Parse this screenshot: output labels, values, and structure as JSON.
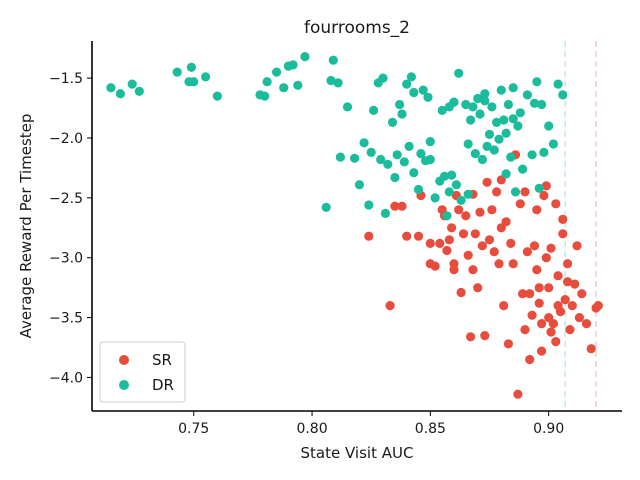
{
  "chart_data": {
    "type": "scatter",
    "title": "fourrooms_2",
    "xlabel": "State Visit AUC",
    "ylabel": "Average Reward Per Timestep",
    "xlim": [
      0.707,
      0.931
    ],
    "ylim": [
      -4.28,
      -1.19
    ],
    "xticks": [
      0.75,
      0.8,
      0.85,
      0.9
    ],
    "xtick_labels": [
      "0.75",
      "0.80",
      "0.85",
      "0.90"
    ],
    "yticks": [
      -1.5,
      -2.0,
      -2.5,
      -3.0,
      -3.5,
      -4.0
    ],
    "ytick_labels": [
      "−1.5",
      "−2.0",
      "−2.5",
      "−3.0",
      "−3.5",
      "−4.0"
    ],
    "grid": false,
    "legend_position": "bottom-left",
    "reference_lines": [
      {
        "x": 0.907,
        "color": "#1abc9c"
      },
      {
        "x": 0.92,
        "color": "#e74c3c"
      }
    ],
    "series": [
      {
        "name": "SR",
        "color": "#e74c3c",
        "points": [
          [
            0.824,
            -2.82
          ],
          [
            0.833,
            -3.4
          ],
          [
            0.835,
            -2.57
          ],
          [
            0.838,
            -2.57
          ],
          [
            0.84,
            -2.82
          ],
          [
            0.845,
            -2.82
          ],
          [
            0.846,
            -2.48
          ],
          [
            0.85,
            -2.88
          ],
          [
            0.852,
            -3.07
          ],
          [
            0.854,
            -2.88
          ],
          [
            0.855,
            -2.6
          ],
          [
            0.856,
            -2.65
          ],
          [
            0.857,
            -2.94
          ],
          [
            0.858,
            -2.85
          ],
          [
            0.859,
            -2.75
          ],
          [
            0.86,
            -3.1
          ],
          [
            0.861,
            -2.48
          ],
          [
            0.862,
            -2.6
          ],
          [
            0.863,
            -3.29
          ],
          [
            0.864,
            -2.8
          ],
          [
            0.865,
            -2.65
          ],
          [
            0.866,
            -2.98
          ],
          [
            0.867,
            -3.66
          ],
          [
            0.868,
            -2.47
          ],
          [
            0.869,
            -2.8
          ],
          [
            0.87,
            -3.25
          ],
          [
            0.871,
            -2.62
          ],
          [
            0.872,
            -2.9
          ],
          [
            0.873,
            -3.65
          ],
          [
            0.874,
            -2.37
          ],
          [
            0.875,
            -2.85
          ],
          [
            0.876,
            -2.6
          ],
          [
            0.877,
            -2.95
          ],
          [
            0.878,
            -2.45
          ],
          [
            0.879,
            -3.05
          ],
          [
            0.88,
            -2.75
          ],
          [
            0.881,
            -3.4
          ],
          [
            0.882,
            -2.7
          ],
          [
            0.883,
            -3.72
          ],
          [
            0.884,
            -2.88
          ],
          [
            0.885,
            -3.05
          ],
          [
            0.886,
            -2.14
          ],
          [
            0.887,
            -4.14
          ],
          [
            0.888,
            -2.55
          ],
          [
            0.889,
            -3.3
          ],
          [
            0.89,
            -3.6
          ],
          [
            0.891,
            -2.95
          ],
          [
            0.892,
            -3.3
          ],
          [
            0.893,
            -3.48
          ],
          [
            0.894,
            -2.9
          ],
          [
            0.895,
            -3.1
          ],
          [
            0.896,
            -3.38
          ],
          [
            0.897,
            -3.55
          ],
          [
            0.898,
            -2.48
          ],
          [
            0.899,
            -3.0
          ],
          [
            0.9,
            -3.25
          ],
          [
            0.901,
            -2.92
          ],
          [
            0.902,
            -3.55
          ],
          [
            0.903,
            -3.7
          ],
          [
            0.904,
            -3.15
          ],
          [
            0.905,
            -3.45
          ],
          [
            0.906,
            -2.8
          ],
          [
            0.907,
            -3.35
          ],
          [
            0.908,
            -3.05
          ],
          [
            0.909,
            -3.6
          ],
          [
            0.91,
            -3.4
          ],
          [
            0.911,
            -3.22
          ],
          [
            0.912,
            -2.9
          ],
          [
            0.913,
            -3.5
          ],
          [
            0.914,
            -3.3
          ],
          [
            0.916,
            -3.55
          ],
          [
            0.918,
            -3.76
          ],
          [
            0.92,
            -3.42
          ],
          [
            0.921,
            -3.4
          ],
          [
            0.88,
            -2.35
          ],
          [
            0.89,
            -2.45
          ],
          [
            0.895,
            -2.6
          ],
          [
            0.903,
            -2.55
          ],
          [
            0.906,
            -2.68
          ],
          [
            0.899,
            -2.4
          ],
          [
            0.868,
            -3.1
          ],
          [
            0.86,
            -3.05
          ],
          [
            0.85,
            -3.05
          ],
          [
            0.892,
            -3.85
          ],
          [
            0.897,
            -3.78
          ],
          [
            0.9,
            -3.5
          ],
          [
            0.904,
            -3.4
          ],
          [
            0.908,
            -3.2
          ],
          [
            0.901,
            -3.62
          ],
          [
            0.896,
            -3.25
          ]
        ]
      },
      {
        "name": "DR",
        "color": "#1abc9c",
        "points": [
          [
            0.715,
            -1.58
          ],
          [
            0.719,
            -1.63
          ],
          [
            0.724,
            -1.55
          ],
          [
            0.727,
            -1.61
          ],
          [
            0.743,
            -1.45
          ],
          [
            0.748,
            -1.53
          ],
          [
            0.749,
            -1.41
          ],
          [
            0.75,
            -1.53
          ],
          [
            0.755,
            -1.49
          ],
          [
            0.76,
            -1.65
          ],
          [
            0.778,
            -1.64
          ],
          [
            0.78,
            -1.65
          ],
          [
            0.781,
            -1.53
          ],
          [
            0.785,
            -1.45
          ],
          [
            0.788,
            -1.58
          ],
          [
            0.79,
            -1.4
          ],
          [
            0.792,
            -1.39
          ],
          [
            0.794,
            -1.56
          ],
          [
            0.797,
            -1.32
          ],
          [
            0.806,
            -2.58
          ],
          [
            0.808,
            -1.52
          ],
          [
            0.809,
            -1.35
          ],
          [
            0.811,
            -1.54
          ],
          [
            0.812,
            -2.16
          ],
          [
            0.815,
            -1.74
          ],
          [
            0.818,
            -2.17
          ],
          [
            0.82,
            -2.39
          ],
          [
            0.822,
            -2.04
          ],
          [
            0.824,
            -2.56
          ],
          [
            0.825,
            -2.12
          ],
          [
            0.826,
            -1.77
          ],
          [
            0.828,
            -1.54
          ],
          [
            0.829,
            -2.18
          ],
          [
            0.83,
            -1.5
          ],
          [
            0.831,
            -2.63
          ],
          [
            0.832,
            -2.22
          ],
          [
            0.834,
            -1.87
          ],
          [
            0.835,
            -2.33
          ],
          [
            0.836,
            -2.14
          ],
          [
            0.837,
            -1.72
          ],
          [
            0.838,
            -1.8
          ],
          [
            0.839,
            -2.2
          ],
          [
            0.84,
            -1.55
          ],
          [
            0.841,
            -2.07
          ],
          [
            0.842,
            -1.49
          ],
          [
            0.843,
            -1.62
          ],
          [
            0.845,
            -2.43
          ],
          [
            0.846,
            -2.13
          ],
          [
            0.847,
            -1.6
          ],
          [
            0.848,
            -2.19
          ],
          [
            0.849,
            -1.66
          ],
          [
            0.85,
            -2.03
          ],
          [
            0.852,
            -2.5
          ],
          [
            0.854,
            -2.36
          ],
          [
            0.855,
            -1.77
          ],
          [
            0.856,
            -2.32
          ],
          [
            0.857,
            -2.65
          ],
          [
            0.858,
            -2.45
          ],
          [
            0.859,
            -2.31
          ],
          [
            0.86,
            -1.7
          ],
          [
            0.861,
            -2.39
          ],
          [
            0.862,
            -1.46
          ],
          [
            0.863,
            -2.52
          ],
          [
            0.865,
            -1.72
          ],
          [
            0.866,
            -2.47
          ],
          [
            0.867,
            -1.85
          ],
          [
            0.868,
            -1.74
          ],
          [
            0.869,
            -2.13
          ],
          [
            0.87,
            -1.67
          ],
          [
            0.871,
            -1.8
          ],
          [
            0.872,
            -2.18
          ],
          [
            0.873,
            -1.63
          ],
          [
            0.874,
            -2.07
          ],
          [
            0.875,
            -1.97
          ],
          [
            0.876,
            -1.74
          ],
          [
            0.877,
            -2.1
          ],
          [
            0.878,
            -1.87
          ],
          [
            0.879,
            -2.01
          ],
          [
            0.88,
            -1.6
          ],
          [
            0.881,
            -1.85
          ],
          [
            0.882,
            -2.3
          ],
          [
            0.883,
            -1.72
          ],
          [
            0.884,
            -2.16
          ],
          [
            0.885,
            -1.84
          ],
          [
            0.886,
            -2.45
          ],
          [
            0.887,
            -1.9
          ],
          [
            0.888,
            -1.79
          ],
          [
            0.889,
            -2.26
          ],
          [
            0.891,
            -1.64
          ],
          [
            0.893,
            -2.14
          ],
          [
            0.894,
            -1.71
          ],
          [
            0.895,
            -1.53
          ],
          [
            0.896,
            -2.42
          ],
          [
            0.897,
            -1.72
          ],
          [
            0.898,
            -2.12
          ],
          [
            0.9,
            -1.9
          ],
          [
            0.902,
            -2.05
          ],
          [
            0.904,
            -1.55
          ],
          [
            0.906,
            -1.64
          ],
          [
            0.866,
            -2.05
          ],
          [
            0.858,
            -1.74
          ],
          [
            0.873,
            -1.69
          ],
          [
            0.885,
            -1.58
          ],
          [
            0.882,
            -1.96
          ],
          [
            0.843,
            -2.29
          ],
          [
            0.85,
            -2.18
          ]
        ]
      }
    ]
  }
}
